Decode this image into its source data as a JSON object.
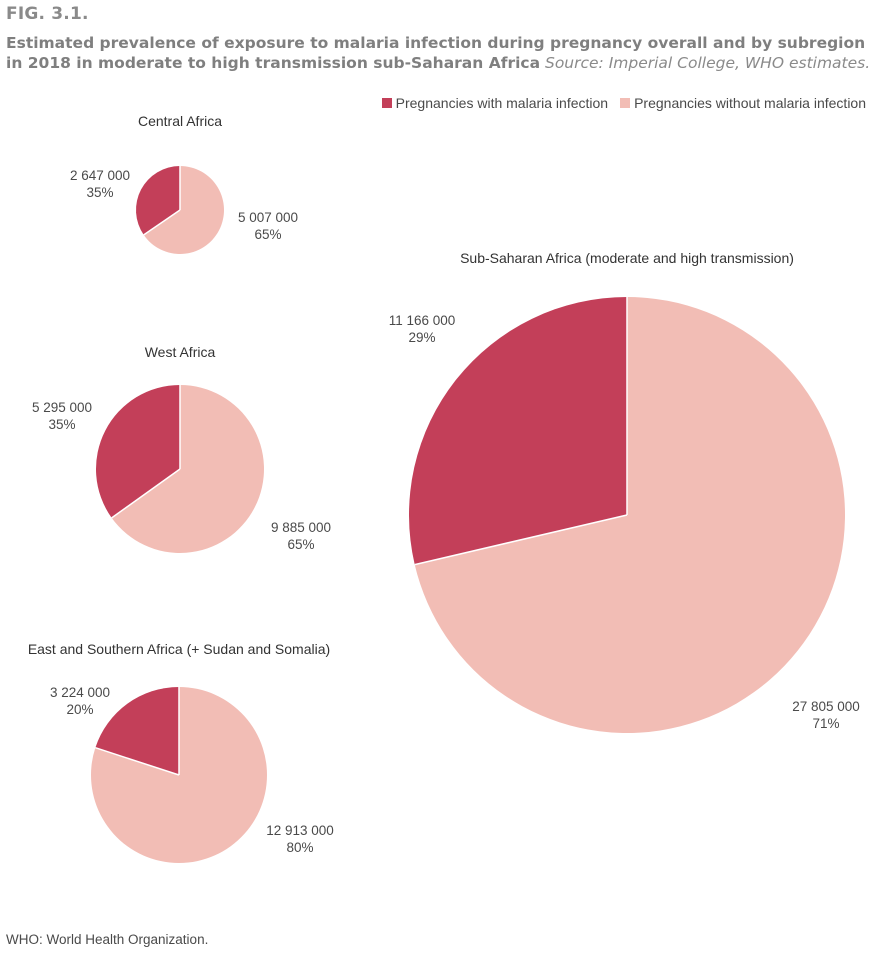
{
  "figure": {
    "label": "FIG. 3.1.",
    "caption_bold": "Estimated prevalence of exposure to malaria infection during pregnancy overall and by subregion in 2018 in moderate to high transmission sub-Saharan Africa",
    "caption_source": "Source: Imperial College, WHO estimates.",
    "footnote": "WHO: World Health Organization."
  },
  "colors": {
    "with_infection": "#c33f59",
    "without_infection": "#f2bdb5"
  },
  "chart_data": [
    {
      "type": "pie",
      "title": "Central Africa",
      "series": [
        {
          "name": "Pregnancies with malaria infection",
          "value": 2647000,
          "value_label": "2 647 000",
          "percent_label": "35%"
        },
        {
          "name": "Pregnancies without malaria infection",
          "value": 5007000,
          "value_label": "5 007 000",
          "percent_label": "65%"
        }
      ]
    },
    {
      "type": "pie",
      "title": "West Africa",
      "series": [
        {
          "name": "Pregnancies with malaria infection",
          "value": 5295000,
          "value_label": "5 295 000",
          "percent_label": "35%"
        },
        {
          "name": "Pregnancies without malaria infection",
          "value": 9885000,
          "value_label": "9 885 000",
          "percent_label": "65%"
        }
      ]
    },
    {
      "type": "pie",
      "title": "East and Southern Africa (+ Sudan and Somalia)",
      "series": [
        {
          "name": "Pregnancies with malaria infection",
          "value": 3224000,
          "value_label": "3 224 000",
          "percent_label": "20%"
        },
        {
          "name": "Pregnancies without malaria infection",
          "value": 12913000,
          "value_label": "12 913 000",
          "percent_label": "80%"
        }
      ]
    },
    {
      "type": "pie",
      "title": "Sub-Saharan Africa (moderate and high transmission)",
      "series": [
        {
          "name": "Pregnancies with malaria infection",
          "value": 11166000,
          "value_label": "11 166 000",
          "percent_label": "29%"
        },
        {
          "name": "Pregnancies without malaria infection",
          "value": 27805000,
          "value_label": "27 805 000",
          "percent_label": "71%"
        }
      ]
    }
  ],
  "legend": [
    {
      "label": "Pregnancies with malaria infection"
    },
    {
      "label": "Pregnancies without malaria infection"
    }
  ]
}
